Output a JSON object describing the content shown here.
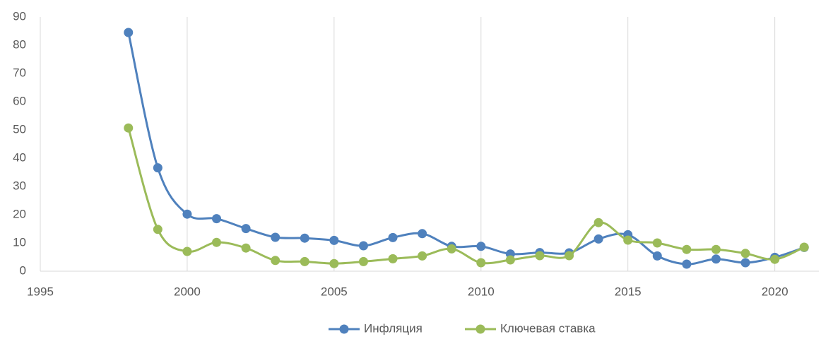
{
  "chart_data": {
    "type": "line",
    "x": [
      1998,
      1999,
      2000,
      2001,
      2002,
      2003,
      2004,
      2005,
      2006,
      2007,
      2008,
      2009,
      2010,
      2011,
      2012,
      2013,
      2014,
      2015,
      2016,
      2017,
      2018,
      2019,
      2020,
      2021
    ],
    "series": [
      {
        "name": "Инфляция",
        "color": "#4f81bd",
        "values": [
          84.5,
          36.6,
          20.2,
          18.6,
          15.1,
          12.0,
          11.7,
          10.9,
          9.0,
          11.9,
          13.3,
          8.8,
          8.8,
          6.1,
          6.6,
          6.5,
          11.4,
          12.9,
          5.4,
          2.5,
          4.3,
          3.0,
          4.9,
          8.4
        ]
      },
      {
        "name": "Ключевая ставка",
        "color": "#9bbb59",
        "values": [
          50.7,
          14.8,
          7.0,
          10.2,
          8.2,
          3.8,
          3.4,
          2.7,
          3.4,
          4.4,
          5.4,
          7.9,
          3.0,
          4.0,
          5.5,
          5.5,
          17.2,
          11.0,
          10.0,
          7.7,
          7.7,
          6.3,
          4.2,
          8.5
        ]
      }
    ],
    "xlim": [
      1995,
      2021.5
    ],
    "xticks": [
      1995,
      2000,
      2005,
      2010,
      2015,
      2020
    ],
    "ylim": [
      0,
      90
    ],
    "yticks": [
      0,
      10,
      20,
      30,
      40,
      50,
      60,
      70,
      80,
      90
    ],
    "grid": "x",
    "smooth": true,
    "legend": "bottom"
  }
}
